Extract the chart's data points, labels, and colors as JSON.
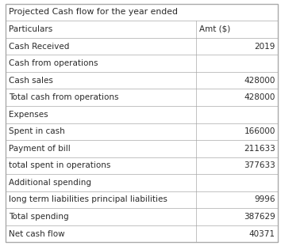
{
  "title": "Projected Cash flow for the year ended",
  "col1_header": "Particulars",
  "col2_header": "Amt ($)",
  "rows": [
    {
      "label": "Cash Received",
      "value": "2019"
    },
    {
      "label": "Cash from operations",
      "value": ""
    },
    {
      "label": "Cash sales",
      "value": "428000"
    },
    {
      "label": "Total cash from operations",
      "value": "428000"
    },
    {
      "label": "Expenses",
      "value": ""
    },
    {
      "label": "Spent in cash",
      "value": "166000"
    },
    {
      "label": "Payment of bill",
      "value": "211633"
    },
    {
      "label": "total spent in operations",
      "value": "377633"
    },
    {
      "label": "Additional spending",
      "value": ""
    },
    {
      "label": "long term liabilities principal liabilities",
      "value": "9996"
    },
    {
      "label": "Total spending",
      "value": "387629"
    },
    {
      "label": "Net cash flow",
      "value": "40371"
    }
  ],
  "bg_color": "#ffffff",
  "line_color": "#aaaaaa",
  "text_color": "#2a2a2a",
  "font_size": 7.5,
  "title_font_size": 7.8,
  "col_split": 0.7,
  "outer_lw": 1.0,
  "inner_lw": 0.5,
  "fig_width": 3.54,
  "fig_height": 3.11,
  "dpi": 100
}
